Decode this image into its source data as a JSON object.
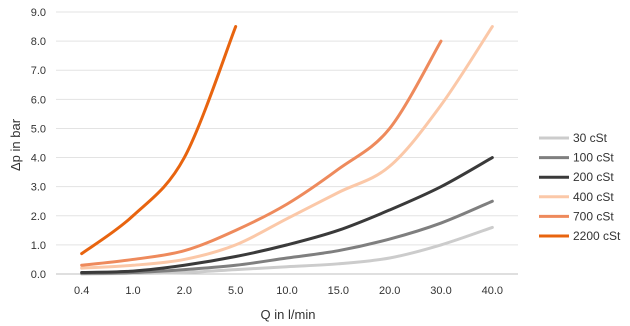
{
  "chart_data": {
    "type": "line",
    "title": "",
    "xlabel": "Q in l/min",
    "ylabel": "Δp in bar",
    "categories": [
      "0.4",
      "1.0",
      "2.0",
      "5.0",
      "10.0",
      "15.0",
      "20.0",
      "30.0",
      "40.0"
    ],
    "yticks": [
      "0.0",
      "1.0",
      "2.0",
      "3.0",
      "4.0",
      "5.0",
      "6.0",
      "7.0",
      "8.0",
      "9.0"
    ],
    "ylim": [
      0,
      9
    ],
    "grid": "horizontal",
    "legend_position": "right",
    "series": [
      {
        "name": "30 cSt",
        "color": "#cccccc",
        "values": [
          0.0,
          0.02,
          0.05,
          0.15,
          0.25,
          0.35,
          0.55,
          1.0,
          1.6
        ]
      },
      {
        "name": "100 cSt",
        "color": "#7f7f7f",
        "values": [
          0.02,
          0.05,
          0.15,
          0.3,
          0.55,
          0.8,
          1.2,
          1.75,
          2.5
        ]
      },
      {
        "name": "200 cSt",
        "color": "#3a3a3a",
        "values": [
          0.05,
          0.1,
          0.3,
          0.6,
          1.0,
          1.5,
          2.2,
          3.0,
          4.0
        ]
      },
      {
        "name": "400 cSt",
        "color": "#fbc8a8",
        "values": [
          0.2,
          0.3,
          0.5,
          1.0,
          1.9,
          2.8,
          3.7,
          5.8,
          8.5
        ]
      },
      {
        "name": "700 cSt",
        "color": "#ee8a5c",
        "values": [
          0.3,
          0.5,
          0.8,
          1.5,
          2.4,
          3.6,
          5.0,
          8.0,
          null
        ]
      },
      {
        "name": "2200 cSt",
        "color": "#e8640f",
        "values": [
          0.7,
          2.0,
          4.0,
          8.5,
          null,
          null,
          null,
          null,
          null
        ]
      }
    ]
  }
}
